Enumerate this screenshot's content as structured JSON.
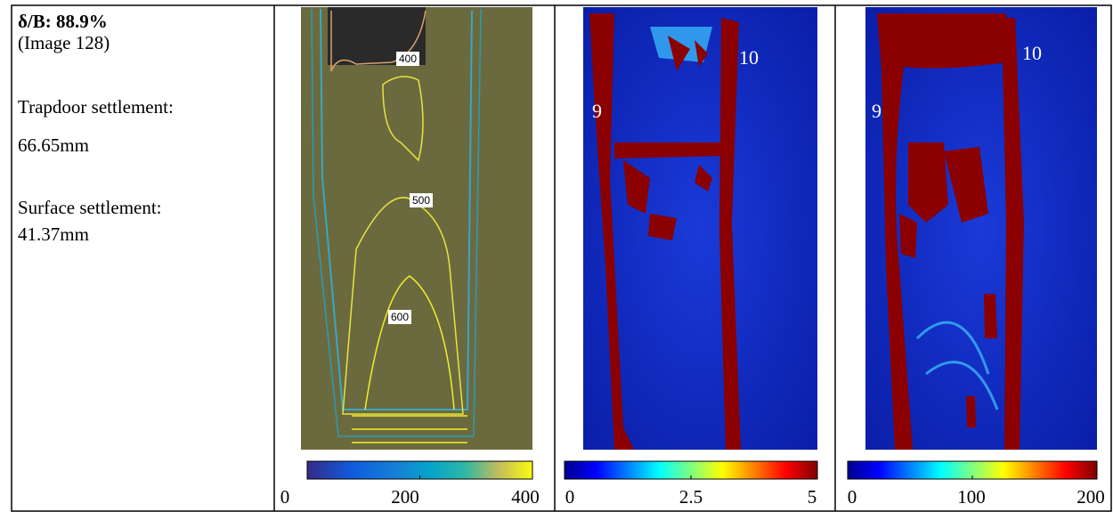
{
  "info": {
    "title": "δ/B: 88.9%",
    "image": "(Image 128)",
    "trapdoor_label": "Trapdoor settlement:",
    "trapdoor_value": "66.65mm",
    "surface_label": "Surface settlement:",
    "surface_value": "41.37mm"
  },
  "panels": [
    {
      "contour_labels": [
        "400",
        "500",
        "600"
      ],
      "colorbar_range": [
        0,
        400
      ],
      "colorbar_ticks": [
        0,
        200,
        400
      ]
    },
    {
      "annotations": [
        "9",
        "10"
      ],
      "colorbar_range": [
        0,
        5
      ],
      "colorbar_ticks": [
        0,
        2.5,
        5
      ]
    },
    {
      "annotations": [
        "9",
        "10"
      ],
      "colorbar_range": [
        0,
        200
      ],
      "colorbar_ticks": [
        0,
        100,
        200
      ]
    }
  ]
}
